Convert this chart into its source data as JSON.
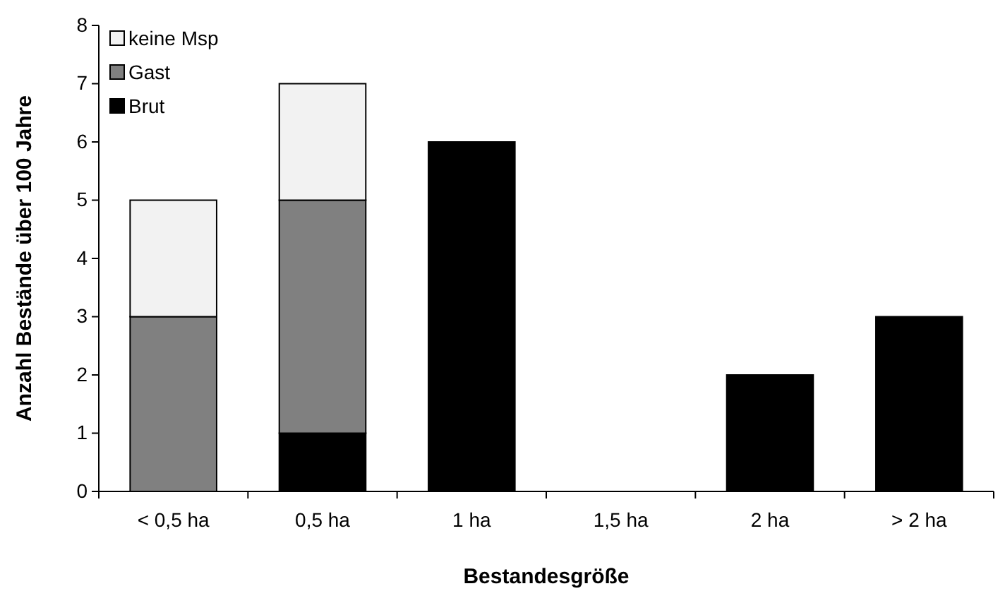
{
  "chart_data": {
    "type": "bar",
    "stacked": true,
    "xlabel": "Bestandesgröße",
    "ylabel": "Anzahl Bestände über 100 Jahre",
    "categories": [
      "< 0,5 ha",
      "0,5 ha",
      "1 ha",
      "1,5 ha",
      "2 ha",
      "> 2 ha"
    ],
    "series": [
      {
        "name": "Brut",
        "color": "#000000",
        "values": [
          0,
          1,
          6,
          0,
          2,
          3
        ]
      },
      {
        "name": "Gast",
        "color": "#808080",
        "values": [
          3,
          4,
          0,
          0,
          0,
          0
        ]
      },
      {
        "name": "keine Msp",
        "color": "#f2f2f2",
        "values": [
          2,
          2,
          0,
          0,
          0,
          0
        ]
      }
    ],
    "ylim": [
      0,
      8
    ],
    "yticks": [
      0,
      1,
      2,
      3,
      4,
      5,
      6,
      7,
      8
    ],
    "legend": "top left"
  }
}
